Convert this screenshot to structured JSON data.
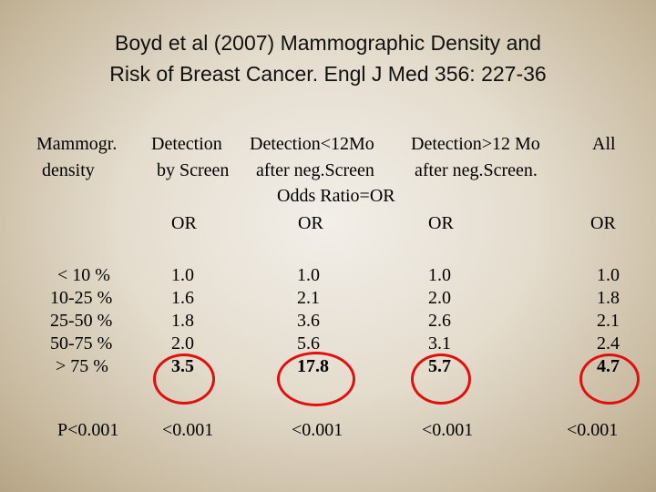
{
  "title_line1": "Boyd et al (2007) Mammographic Density and",
  "title_line2": "Risk of Breast Cancer. Engl J Med 356: 227-36",
  "headers": {
    "col1_line1": "Mammogr.",
    "col1_line2": "density",
    "col2_line1": "Detection",
    "col2_line2": "by Screen",
    "col3_line1": "Detection<12Mo",
    "col3_line2": "after neg.Screen",
    "col4_line1": "Detection>12 Mo",
    "col4_line2": "after neg.Screen.",
    "col5_line1": "All",
    "odds_ratio_note": "Odds Ratio=OR",
    "or_label": "OR"
  },
  "rows": {
    "density": [
      "< 10 %",
      "10-25 %",
      "25-50 %",
      "50-75 %",
      "> 75 %"
    ],
    "screen": [
      "1.0",
      "1.6",
      "1.8",
      "2.0",
      "3.5"
    ],
    "lt12": [
      "1.0",
      "2.1",
      "3.6",
      "5.6",
      "17.8"
    ],
    "gt12": [
      "1.0",
      "2.0",
      "2.6",
      "3.1",
      "5.7"
    ],
    "all": [
      "1.0",
      "1.8",
      "2.1",
      "2.4",
      "4.7"
    ]
  },
  "pvalues": {
    "label": "P<0.001",
    "screen": "<0.001",
    "lt12": "<0.001",
    "gt12": "<0.001",
    "all": "<0.001"
  },
  "highlight_color": "#e01010"
}
